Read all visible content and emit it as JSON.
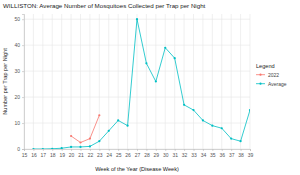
{
  "chart_data": {
    "type": "line",
    "title": "WILLISTON: Average Number of Mosquitoes Collected per Trap per Night",
    "x_label": "Week of the Year (Disease Week)",
    "y_label": "Number per Trap per Night",
    "legend_title": "Legend",
    "x": [
      16,
      17,
      18,
      19,
      20,
      21,
      22,
      23,
      24,
      25,
      26,
      27,
      28,
      29,
      30,
      31,
      32,
      33,
      34,
      35,
      36,
      37,
      38,
      39
    ],
    "series": [
      {
        "name": "2022",
        "color": "#f8766d",
        "marker": "circle",
        "values": [
          null,
          null,
          null,
          null,
          5,
          2.5,
          4,
          13,
          null,
          null,
          null,
          null,
          null,
          null,
          null,
          null,
          null,
          null,
          null,
          null,
          null,
          null,
          null,
          null
        ]
      },
      {
        "name": "Average",
        "color": "#00bfc4",
        "marker": "circle",
        "values": [
          0,
          0,
          0.1,
          0.3,
          0.8,
          0.8,
          1,
          3,
          7,
          11,
          9,
          50,
          33,
          26,
          39,
          35,
          17,
          15,
          11,
          9,
          8,
          4,
          3,
          15
        ]
      }
    ],
    "xlim": [
      15,
      39
    ],
    "xticks": [
      15,
      16,
      17,
      18,
      19,
      20,
      21,
      22,
      23,
      24,
      25,
      26,
      27,
      28,
      29,
      30,
      31,
      32,
      33,
      34,
      35,
      36,
      37,
      38,
      39
    ],
    "ylim": [
      0,
      52
    ],
    "yticks": [
      0,
      10,
      20,
      30,
      40,
      50
    ],
    "grid": true,
    "legend": "right"
  }
}
